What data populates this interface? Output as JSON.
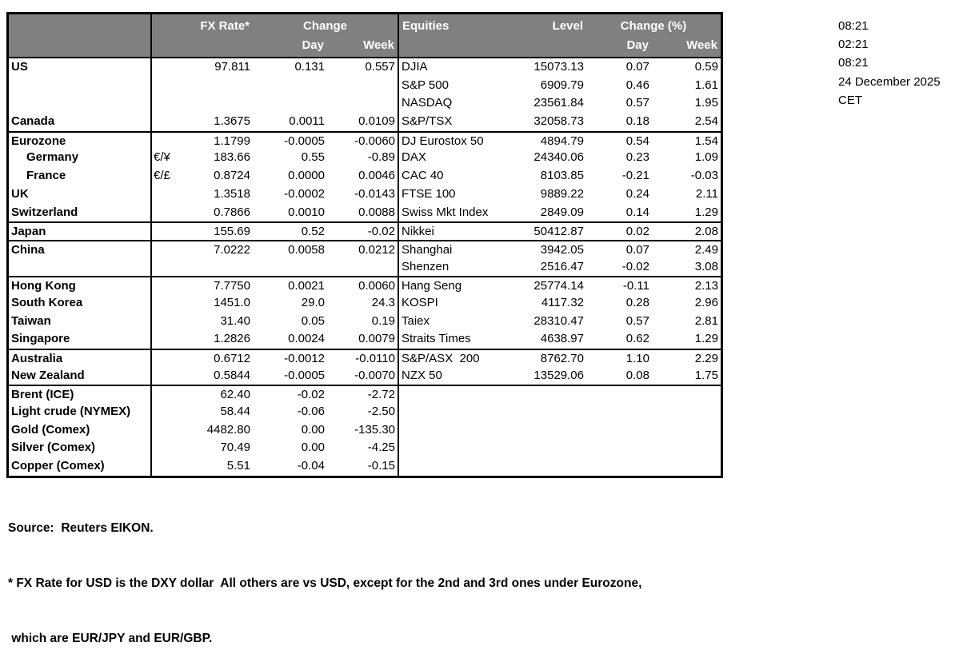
{
  "colors": {
    "header_bg": "#808080",
    "header_text": "#ffffff",
    "border": "#000000",
    "text": "#000000",
    "page_bg": "#ffffff"
  },
  "timestamps": {
    "line1": "08:21",
    "line2": "02:21",
    "line3": "08:21",
    "date": "24 December 2025",
    "timezone": "CET"
  },
  "table": {
    "headers": {
      "fx_rate": "FX Rate*",
      "fx_change": "Change",
      "fx_day": "Day",
      "fx_week": "Week",
      "eq_name": "Equities",
      "eq_level": "Level",
      "eq_change": "Change (%)",
      "eq_day": "Day",
      "eq_week": "Week"
    },
    "rows": [
      {
        "sep": false,
        "indent": false,
        "label": "US",
        "sym": "",
        "rate": "97.811",
        "day": "0.131",
        "week": "0.557",
        "eq": "DJIA",
        "level": "15073.13",
        "eday": "0.07",
        "eweek": "0.59"
      },
      {
        "sep": false,
        "indent": false,
        "label": "",
        "sym": "",
        "rate": "",
        "day": "",
        "week": "",
        "eq": "S&P 500",
        "level": "6909.79",
        "eday": "0.46",
        "eweek": "1.61"
      },
      {
        "sep": false,
        "indent": false,
        "label": "",
        "sym": "",
        "rate": "",
        "day": "",
        "week": "",
        "eq": "NASDAQ",
        "level": "23561.84",
        "eday": "0.57",
        "eweek": "1.95"
      },
      {
        "sep": false,
        "indent": false,
        "label": "Canada",
        "sym": "",
        "rate": "1.3675",
        "day": "0.0011",
        "week": "0.0109",
        "eq": "S&P/TSX",
        "level": "32058.73",
        "eday": "0.18",
        "eweek": "2.54"
      },
      {
        "sep": true,
        "indent": false,
        "label": "Eurozone",
        "sym": "",
        "rate": "1.1799",
        "day": "-0.0005",
        "week": "-0.0060",
        "eq": "DJ Eurostox 50",
        "level": "4894.79",
        "eday": "0.54",
        "eweek": "1.54"
      },
      {
        "sep": false,
        "indent": true,
        "label": "Germany",
        "sym": "€/¥",
        "rate": "183.66",
        "day": "0.55",
        "week": "-0.89",
        "eq": "DAX",
        "level": "24340.06",
        "eday": "0.23",
        "eweek": "1.09"
      },
      {
        "sep": false,
        "indent": true,
        "label": "France",
        "sym": "€/£",
        "rate": "0.8724",
        "day": "0.0000",
        "week": "0.0046",
        "eq": "CAC 40",
        "level": "8103.85",
        "eday": "-0.21",
        "eweek": "-0.03"
      },
      {
        "sep": false,
        "indent": false,
        "label": "UK",
        "sym": "",
        "rate": "1.3518",
        "day": "-0.0002",
        "week": "-0.0143",
        "eq": "FTSE 100",
        "level": "9889.22",
        "eday": "0.24",
        "eweek": "2.11"
      },
      {
        "sep": false,
        "indent": false,
        "label": "Switzerland",
        "sym": "",
        "rate": "0.7866",
        "day": "0.0010",
        "week": "0.0088",
        "eq": "Swiss Mkt Index",
        "level": "2849.09",
        "eday": "0.14",
        "eweek": "1.29"
      },
      {
        "sep": true,
        "indent": false,
        "label": "Japan",
        "sym": "",
        "rate": "155.69",
        "day": "0.52",
        "week": "-0.02",
        "eq": "Nikkei",
        "level": "50412.87",
        "eday": "0.02",
        "eweek": "2.08"
      },
      {
        "sep": true,
        "indent": false,
        "label": "China",
        "sym": "",
        "rate": "7.0222",
        "day": "0.0058",
        "week": "0.0212",
        "eq": "Shanghai",
        "level": "3942.05",
        "eday": "0.07",
        "eweek": "2.49"
      },
      {
        "sep": false,
        "indent": false,
        "label": "",
        "sym": "",
        "rate": "",
        "day": "",
        "week": "",
        "eq": "Shenzen",
        "level": "2516.47",
        "eday": "-0.02",
        "eweek": "3.08"
      },
      {
        "sep": true,
        "indent": false,
        "label": "Hong Kong",
        "sym": "",
        "rate": "7.7750",
        "day": "0.0021",
        "week": "0.0060",
        "eq": "Hang Seng",
        "level": "25774.14",
        "eday": "-0.11",
        "eweek": "2.13"
      },
      {
        "sep": false,
        "indent": false,
        "label": "South Korea",
        "sym": "",
        "rate": "1451.0",
        "day": "29.0",
        "week": "24.3",
        "eq": "KOSPI",
        "level": "4117.32",
        "eday": "0.28",
        "eweek": "2.96"
      },
      {
        "sep": false,
        "indent": false,
        "label": "Taiwan",
        "sym": "",
        "rate": "31.40",
        "day": "0.05",
        "week": "0.19",
        "eq": "Taiex",
        "level": "28310.47",
        "eday": "0.57",
        "eweek": "2.81"
      },
      {
        "sep": false,
        "indent": false,
        "label": "Singapore",
        "sym": "",
        "rate": "1.2826",
        "day": "0.0024",
        "week": "0.0079",
        "eq": "Straits Times",
        "level": "4638.97",
        "eday": "0.62",
        "eweek": "1.29"
      },
      {
        "sep": true,
        "indent": false,
        "label": "Australia",
        "sym": "",
        "rate": "0.6712",
        "day": "-0.0012",
        "week": "-0.0110",
        "eq": "S&P/ASX  200",
        "level": "8762.70",
        "eday": "1.10",
        "eweek": "2.29"
      },
      {
        "sep": false,
        "indent": false,
        "label": "New Zealand",
        "sym": "",
        "rate": "0.5844",
        "day": "-0.0005",
        "week": "-0.0070",
        "eq": "NZX 50",
        "level": "13529.06",
        "eday": "0.08",
        "eweek": "1.75"
      },
      {
        "sep": true,
        "indent": false,
        "label": "Brent (ICE)",
        "sym": "",
        "rate": "62.40",
        "day": "-0.02",
        "week": "-2.72",
        "eq": "",
        "level": "",
        "eday": "",
        "eweek": ""
      },
      {
        "sep": false,
        "indent": false,
        "label": "Light crude (NYMEX)",
        "sym": "",
        "rate": "58.44",
        "day": "-0.06",
        "week": "-2.50",
        "eq": "",
        "level": "",
        "eday": "",
        "eweek": ""
      },
      {
        "sep": false,
        "indent": false,
        "label": "Gold (Comex)",
        "sym": "",
        "rate": "4482.80",
        "day": "0.00",
        "week": "-135.30",
        "eq": "",
        "level": "",
        "eday": "",
        "eweek": ""
      },
      {
        "sep": false,
        "indent": false,
        "label": "Silver (Comex)",
        "sym": "",
        "rate": "70.49",
        "day": "0.00",
        "week": "-4.25",
        "eq": "",
        "level": "",
        "eday": "",
        "eweek": ""
      },
      {
        "sep": false,
        "indent": false,
        "label": "Copper (Comex)",
        "sym": "",
        "rate": "5.51",
        "day": "-0.04",
        "week": "-0.15",
        "eq": "",
        "level": "",
        "eday": "",
        "eweek": ""
      }
    ]
  },
  "footer": {
    "source": "Source:  Reuters EIKON.",
    "note1": "* FX Rate for USD is the DXY dollar  All others are vs USD, except for the 2nd and 3rd ones under Eurozone,",
    "note2": " which are EUR/JPY and EUR/GBP."
  }
}
